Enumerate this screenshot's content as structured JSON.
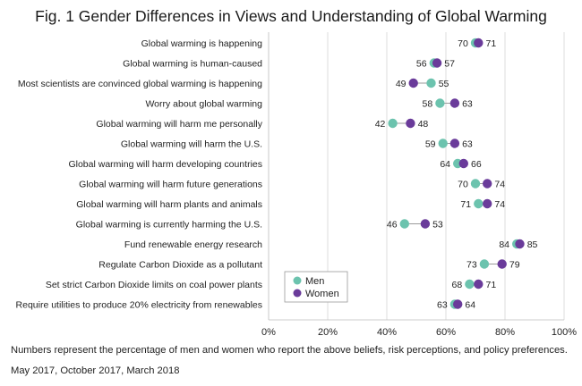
{
  "title": "Fig. 1 Gender Differences in Views and Understanding of Global Warming",
  "colors": {
    "men": "#6cc3ae",
    "women": "#6a3b9a",
    "grid": "#d6d6d6",
    "axis": "#bdbdbd"
  },
  "legend": {
    "men": "Men",
    "women": "Women"
  },
  "footnotes": {
    "line1": "Numbers represent the percentage of men and women who report the above beliefs, risk perceptions, and policy preferences.",
    "line2": "May 2017, October 2017, March 2018"
  },
  "chart_data": {
    "type": "scatter",
    "categories": [
      "Global warming is happening",
      "Global warming is human-caused",
      "Most scientists are convinced global warming is happening",
      "Worry about global warming",
      "Global warming will harm me personally",
      "Global warming will harm the U.S.",
      "Global warming will harm developing countries",
      "Global warming will harm future generations",
      "Global warming will harm plants and animals",
      "Global warming is currently harming the U.S.",
      "Fund renewable energy research",
      "Regulate Carbon Dioxide as a pollutant",
      "Set strict Carbon Dioxide limits on coal power plants",
      "Require utilities to produce 20% electricity from renewables"
    ],
    "series": [
      {
        "name": "Men",
        "values": [
          70,
          56,
          55,
          58,
          42,
          59,
          64,
          70,
          71,
          46,
          84,
          73,
          68,
          63
        ]
      },
      {
        "name": "Women",
        "values": [
          71,
          57,
          49,
          63,
          48,
          63,
          66,
          74,
          74,
          53,
          85,
          79,
          71,
          64
        ]
      }
    ],
    "xlim": [
      0,
      100
    ],
    "xticks": [
      "0%",
      "20%",
      "40%",
      "60%",
      "80%",
      "100%"
    ],
    "grid": true,
    "legend_position": "bottom-left"
  }
}
